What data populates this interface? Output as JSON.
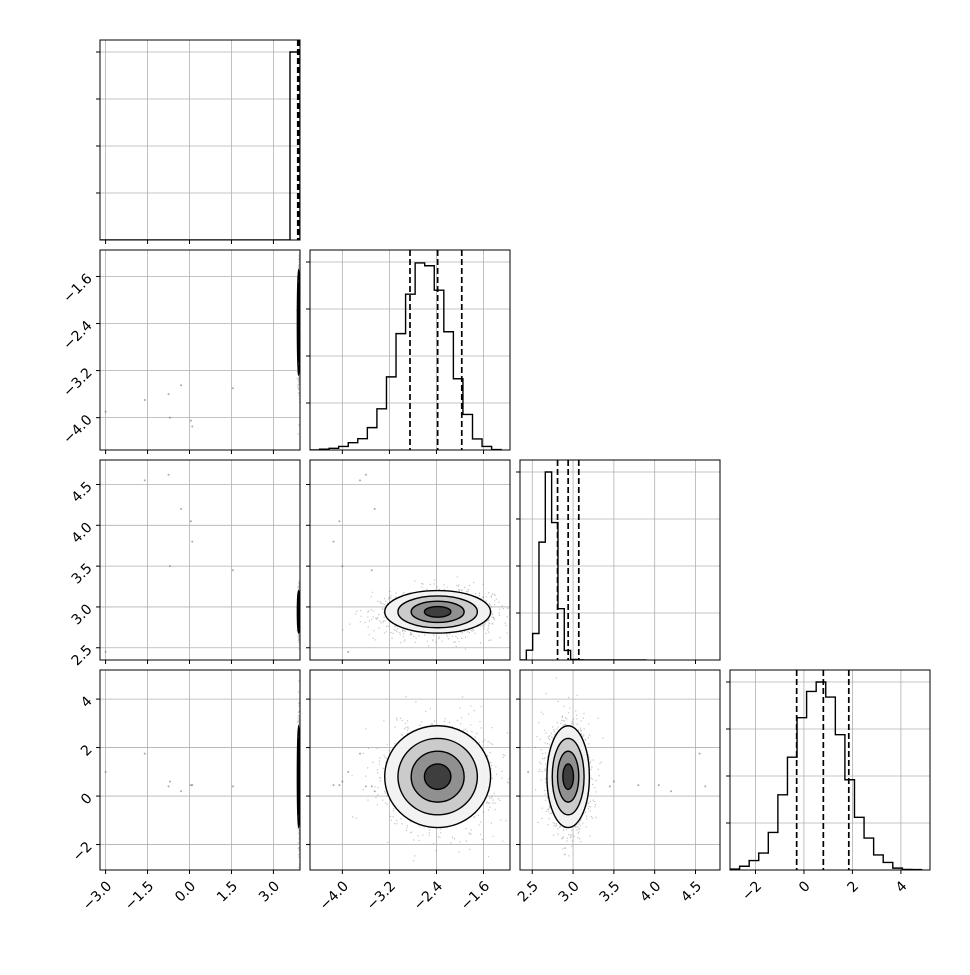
{
  "chart_data": {
    "type": "corner",
    "variables": 4,
    "grid": true,
    "colors": {
      "frame": "#000000",
      "grid": "#b0b0b0",
      "points": "#555555",
      "contour": "#000000",
      "quantile": "#000000"
    },
    "params": [
      {
        "index": 0,
        "median": 3.9,
        "q16": 3.87,
        "q84": 3.93,
        "sd": 0.03,
        "range": [
          -3.2,
          3.95
        ]
      },
      {
        "index": 1,
        "median": -2.38,
        "q16": -2.85,
        "q84": -1.97,
        "sd": 0.45,
        "range": [
          -4.55,
          -1.15
        ]
      },
      {
        "index": 2,
        "median": 2.94,
        "q16": 2.81,
        "q84": 3.07,
        "sd": 0.13,
        "range": [
          2.35,
          4.8
        ]
      },
      {
        "index": 3,
        "median": 0.8,
        "q16": -0.3,
        "q84": 1.85,
        "sd": 1.05,
        "range": [
          -3.05,
          5.2
        ]
      }
    ],
    "histograms": [
      {
        "param": 0,
        "counts": [
          0,
          0,
          0,
          0,
          0,
          0,
          0,
          0,
          0,
          0,
          0,
          0,
          0,
          0,
          0,
          0,
          0,
          0,
          0,
          100
        ]
      },
      {
        "param": 1,
        "counts": [
          0,
          0.4,
          0.9,
          1.9,
          3.9,
          6,
          11.9,
          21.9,
          38.9,
          61.9,
          82.9,
          99.5,
          98,
          85,
          62.9,
          37.9,
          18.9,
          5.9,
          1.9,
          0.2
        ]
      },
      {
        "param": 2,
        "counts": [
          0,
          5.2,
          14.1,
          62.7,
          100,
          73.1,
          27.3,
          5.1,
          0.3,
          0.1,
          0,
          0,
          0,
          0,
          0,
          0,
          0,
          0,
          0,
          0
        ]
      },
      {
        "param": 3,
        "counts": [
          0.5,
          2,
          5,
          9,
          20,
          40,
          60,
          81,
          95,
          100,
          92,
          72,
          48,
          28,
          17,
          8,
          4,
          1,
          0.3,
          0.2
        ]
      }
    ],
    "panels": [
      {
        "x": 0,
        "y": 1,
        "rho": 0
      },
      {
        "x": 0,
        "y": 2,
        "rho": 0
      },
      {
        "x": 1,
        "y": 2,
        "rho": 0.05
      },
      {
        "x": 0,
        "y": 3,
        "rho": 0
      },
      {
        "x": 1,
        "y": 3,
        "rho": 0.0
      },
      {
        "x": 2,
        "y": 3,
        "rho": -0.05
      }
    ],
    "outliers": [
      [
        -3.0,
        -3.9,
        2.45,
        1.0
      ],
      [
        -1.6,
        -3.7,
        4.55,
        1.75
      ],
      [
        -0.75,
        -3.6,
        4.62,
        0.4
      ],
      [
        -0.3,
        -3.45,
        4.2,
        0.2
      ],
      [
        0.05,
        -4.05,
        4.05,
        0.45
      ],
      [
        0.1,
        -4.15,
        3.8,
        0.45
      ],
      [
        1.55,
        -3.5,
        3.45,
        0.4
      ],
      [
        -0.7,
        -4.0,
        3.5,
        0.6
      ]
    ],
    "x_ticks": [
      {
        "values": [
          -3.0,
          -1.5,
          0.0,
          1.5,
          3.0
        ],
        "labels": [
          "−3.0",
          "−1.5",
          "0.0",
          "1.5",
          "3.0"
        ]
      },
      {
        "values": [
          -4.0,
          -3.2,
          -2.4,
          -1.6
        ],
        "labels": [
          "−4.0",
          "−3.2",
          "−2.4",
          "−1.6"
        ]
      },
      {
        "values": [
          2.5,
          3.0,
          3.5,
          4.0,
          4.5
        ],
        "labels": [
          "2.5",
          "3.0",
          "3.5",
          "4.0",
          "4.5"
        ]
      },
      {
        "values": [
          -2,
          0,
          2,
          4
        ],
        "labels": [
          "−2",
          "0",
          "2",
          "4"
        ]
      }
    ],
    "y_ticks": [
      {
        "values": [
          -1.6,
          -2.4,
          -3.2,
          -4.0
        ],
        "labels": [
          "−1.6",
          "−2.4",
          "−3.2",
          "−4.0"
        ]
      },
      {
        "values": [
          4.5,
          4.0,
          3.5,
          3.0,
          2.5
        ],
        "labels": [
          "4.5",
          "4.0",
          "3.5",
          "3.0",
          "2.5"
        ]
      },
      {
        "values": [
          4,
          2,
          0,
          -2
        ],
        "labels": [
          "4",
          "2",
          "0",
          "−2"
        ]
      }
    ],
    "diag_ticks": [
      25,
      50,
      75,
      100
    ],
    "title": "",
    "xlabel": "",
    "ylabel": ""
  }
}
